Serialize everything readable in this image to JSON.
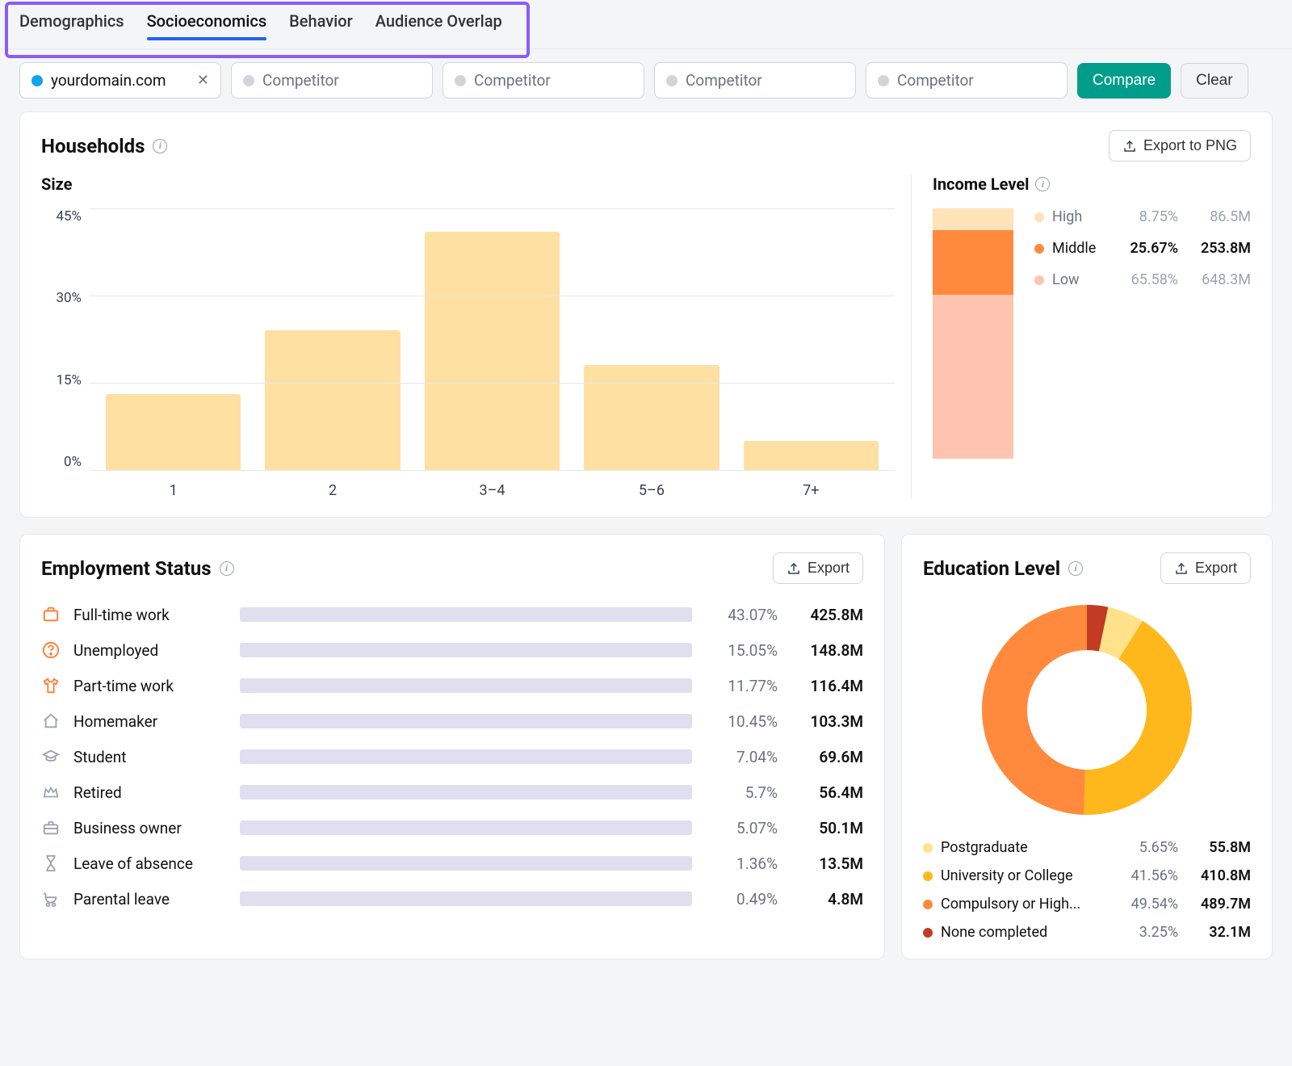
{
  "tabs": {
    "items": [
      "Demographics",
      "Socioeconomics",
      "Behavior",
      "Audience Overlap"
    ],
    "active_index": 1,
    "highlight_color": "#8b5cf6",
    "active_underline_color": "#2563eb"
  },
  "domains": {
    "filled": {
      "value": "yourdomain.com",
      "dot_color": "#0ea5e9"
    },
    "placeholder": "Competitor",
    "empty_count": 4,
    "compare_label": "Compare",
    "clear_label": "Clear",
    "compare_bg": "#009e8a"
  },
  "households": {
    "title": "Households",
    "export_label": "Export to PNG",
    "size": {
      "title": "Size",
      "y_ticks": [
        "45%",
        "30%",
        "15%",
        "0%"
      ],
      "y_max": 45,
      "bar_color": "#ffe0a3",
      "bars": [
        {
          "label": "1",
          "value": 13
        },
        {
          "label": "2",
          "value": 24
        },
        {
          "label": "3–4",
          "value": 41
        },
        {
          "label": "5–6",
          "value": 18
        },
        {
          "label": "7+",
          "value": 5
        }
      ]
    },
    "income": {
      "title": "Income Level",
      "levels": [
        {
          "label": "High",
          "pct": "8.75%",
          "val": "86.5M",
          "pct_num": 8.75,
          "color": "#ffe2b8",
          "emphasis": false
        },
        {
          "label": "Middle",
          "pct": "25.67%",
          "val": "253.8M",
          "pct_num": 25.67,
          "color": "#ff8a3d",
          "emphasis": true
        },
        {
          "label": "Low",
          "pct": "65.58%",
          "val": "648.3M",
          "pct_num": 65.58,
          "color": "#ffc4b0",
          "emphasis": false
        }
      ]
    }
  },
  "employment": {
    "title": "Employment Status",
    "export_label": "Export",
    "bar_fg": "#ffc300",
    "bar_bg": "#e0dff0",
    "rows": [
      {
        "icon": "briefcase",
        "icon_color": "#ff7a2e",
        "label": "Full-time work",
        "pct": "43.07%",
        "pct_num": 43.07,
        "val": "425.8M"
      },
      {
        "icon": "question",
        "icon_color": "#ff7a2e",
        "label": "Unemployed",
        "pct": "15.05%",
        "pct_num": 15.05,
        "val": "148.8M"
      },
      {
        "icon": "tshirt",
        "icon_color": "#ff7a2e",
        "label": "Part-time work",
        "pct": "11.77%",
        "pct_num": 11.77,
        "val": "116.4M"
      },
      {
        "icon": "home",
        "icon_color": "#9ca3af",
        "label": "Homemaker",
        "pct": "10.45%",
        "pct_num": 10.45,
        "val": "103.3M"
      },
      {
        "icon": "gradcap",
        "icon_color": "#9ca3af",
        "label": "Student",
        "pct": "7.04%",
        "pct_num": 7.04,
        "val": "69.6M"
      },
      {
        "icon": "crown",
        "icon_color": "#9ca3af",
        "label": "Retired",
        "pct": "5.7%",
        "pct_num": 5.7,
        "val": "56.4M"
      },
      {
        "icon": "case",
        "icon_color": "#9ca3af",
        "label": "Business owner",
        "pct": "5.07%",
        "pct_num": 5.07,
        "val": "50.1M"
      },
      {
        "icon": "hourglass",
        "icon_color": "#9ca3af",
        "label": "Leave of absence",
        "pct": "1.36%",
        "pct_num": 1.36,
        "val": "13.5M"
      },
      {
        "icon": "stroller",
        "icon_color": "#9ca3af",
        "label": "Parental leave",
        "pct": "0.49%",
        "pct_num": 0.49,
        "val": "4.8M"
      }
    ]
  },
  "education": {
    "title": "Education Level",
    "export_label": "Export",
    "donut": {
      "size": 260,
      "thickness": 56,
      "slices": [
        {
          "label": "None completed",
          "pct_num": 3.25,
          "color": "#c23b22"
        },
        {
          "label": "Postgraduate",
          "pct_num": 5.65,
          "color": "#ffe28a"
        },
        {
          "label": "University or College",
          "pct_num": 41.56,
          "color": "#ffb81c"
        },
        {
          "label": "Compulsory or High...",
          "pct_num": 49.54,
          "color": "#ff8a3d"
        }
      ]
    },
    "legend": [
      {
        "color": "#ffe28a",
        "label": "Postgraduate",
        "pct": "5.65%",
        "val": "55.8M"
      },
      {
        "color": "#ffb81c",
        "label": "University or College",
        "pct": "41.56%",
        "val": "410.8M"
      },
      {
        "color": "#ff8a3d",
        "label": "Compulsory or High...",
        "pct": "49.54%",
        "val": "489.7M"
      },
      {
        "color": "#c23b22",
        "label": "None completed",
        "pct": "3.25%",
        "val": "32.1M"
      }
    ]
  }
}
